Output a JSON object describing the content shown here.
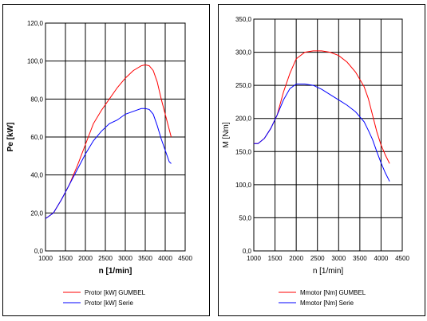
{
  "chart_data": [
    {
      "type": "line",
      "title": "",
      "xlabel": "n [1/min]",
      "ylabel": "Pe [kW]",
      "xlim": [
        1000,
        4500
      ],
      "ylim": [
        0,
        120
      ],
      "x_ticks": [
        1000,
        1500,
        2000,
        2500,
        3000,
        3500,
        4000,
        4500
      ],
      "y_ticks": [
        "0,0",
        "20,0",
        "40,0",
        "60,0",
        "80,0",
        "100,0",
        "120,0"
      ],
      "y_tick_values": [
        0,
        20,
        40,
        60,
        80,
        100,
        120
      ],
      "grid": true,
      "legend_position": "bottom",
      "series": [
        {
          "name": "Protor [kW] GUMBEL",
          "color": "#ff0000",
          "x": [
            1000,
            1200,
            1400,
            1600,
            1800,
            2000,
            2200,
            2400,
            2600,
            2800,
            3000,
            3200,
            3400,
            3500,
            3600,
            3700,
            3800,
            3900,
            4000,
            4100,
            4150
          ],
          "y": [
            17,
            20,
            27,
            35,
            45,
            56,
            67,
            74,
            80,
            86,
            91,
            95,
            97.5,
            98,
            97.5,
            95,
            89,
            80,
            72,
            64,
            60
          ]
        },
        {
          "name": "Protor [kW] Serie",
          "color": "#0000ff",
          "x": [
            1000,
            1200,
            1400,
            1600,
            1800,
            2000,
            2200,
            2400,
            2600,
            2800,
            3000,
            3200,
            3400,
            3500,
            3600,
            3700,
            3800,
            3900,
            4000,
            4100,
            4150
          ],
          "y": [
            17,
            20,
            27,
            35,
            43,
            51,
            58,
            63,
            67,
            69,
            72,
            73.5,
            75,
            75,
            74.5,
            72,
            66,
            59,
            53,
            47,
            46
          ]
        }
      ]
    },
    {
      "type": "line",
      "title": "",
      "xlabel": "n [1/min]",
      "ylabel": "M [Nm]",
      "xlim": [
        1000,
        4500
      ],
      "ylim": [
        0,
        350
      ],
      "x_ticks": [
        1000,
        1500,
        2000,
        2500,
        3000,
        3500,
        4000,
        4500
      ],
      "y_ticks": [
        "0,0",
        "50,0",
        "100,0",
        "150,0",
        "200,0",
        "250,0",
        "300,0",
        "350,0"
      ],
      "y_tick_values": [
        0,
        50,
        100,
        150,
        200,
        250,
        300,
        350
      ],
      "grid": true,
      "legend_position": "bottom",
      "series": [
        {
          "name": "Mmotor [Nm] GUMBEL",
          "color": "#ff0000",
          "x": [
            1000,
            1100,
            1250,
            1400,
            1550,
            1700,
            1850,
            2000,
            2200,
            2400,
            2600,
            2800,
            3000,
            3200,
            3400,
            3600,
            3700,
            3800,
            3900,
            4000,
            4100,
            4200
          ],
          "y": [
            162,
            162,
            170,
            185,
            205,
            240,
            268,
            290,
            300,
            302,
            302,
            300,
            295,
            285,
            270,
            248,
            230,
            205,
            180,
            160,
            145,
            132
          ]
        },
        {
          "name": "Mmotor [Nm] Serie",
          "color": "#0000ff",
          "x": [
            1000,
            1100,
            1250,
            1400,
            1550,
            1700,
            1850,
            2000,
            2200,
            2400,
            2600,
            2800,
            3000,
            3200,
            3400,
            3600,
            3700,
            3800,
            3900,
            4000,
            4100,
            4200
          ],
          "y": [
            162,
            162,
            170,
            185,
            205,
            228,
            245,
            252,
            252,
            250,
            244,
            236,
            228,
            220,
            210,
            195,
            182,
            168,
            150,
            133,
            118,
            105
          ]
        }
      ]
    }
  ]
}
